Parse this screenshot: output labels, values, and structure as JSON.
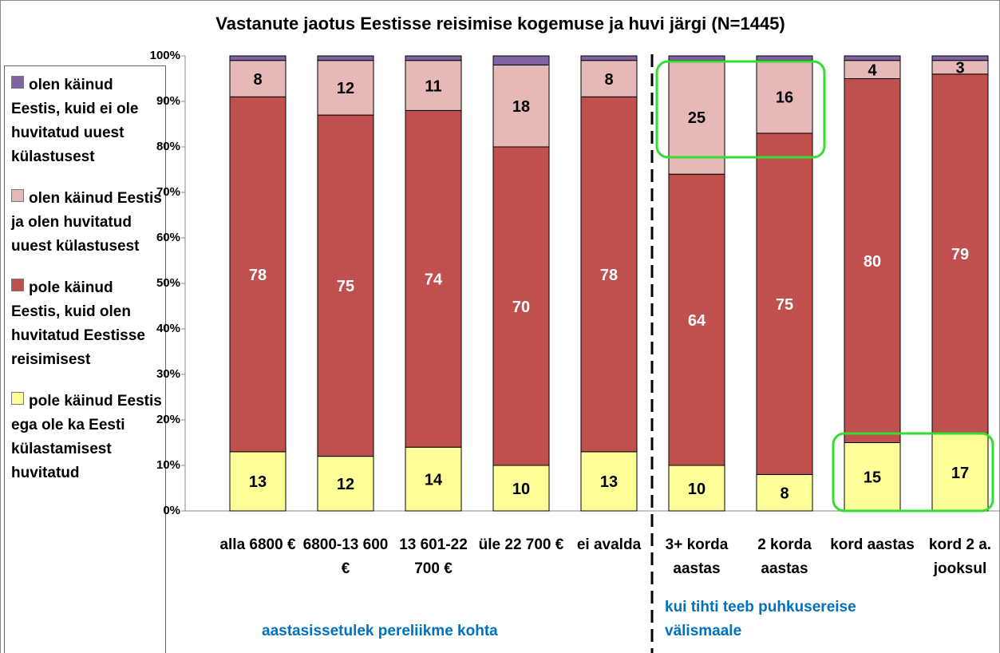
{
  "chart_data": {
    "type": "stacked_bar_100",
    "title": "Vastanute jaotus Eestisse reisimise kogemuse ja huvi järgi (N=1445)",
    "categories": [
      "alla 6800 €",
      "6800-13 600 €",
      "13 601-22 700 €",
      "üle 22 700 €",
      "ei avalda",
      "3+ korda aastas",
      "2 korda aastas",
      "kord aastas",
      "kord 2 a. jooksul"
    ],
    "series": [
      {
        "name": "olen käinud Eestis, kuid ei ole huvitatud uuest külastusest",
        "color": "#8064a2",
        "show_labels": false,
        "values": [
          1,
          1,
          1,
          2,
          1,
          1,
          1,
          1,
          1
        ]
      },
      {
        "name": "olen käinud Eestis ja olen huvitatud uuest külastusest",
        "color": "#e6b9b8",
        "show_labels": true,
        "label_color": "#000000",
        "values": [
          8,
          12,
          11,
          18,
          8,
          25,
          16,
          4,
          3
        ]
      },
      {
        "name": "pole käinud Eestis, kuid olen huvitatud Eestisse reisimisest",
        "color": "#c0504d",
        "show_labels": true,
        "label_color": "#ffffff",
        "values": [
          78,
          75,
          74,
          70,
          78,
          64,
          75,
          80,
          79
        ]
      },
      {
        "name": "pole käinud Eestis ega ole ka Eesti külastamisest huvitatud",
        "color": "#ffff99",
        "show_labels": true,
        "label_color": "#000000",
        "values": [
          13,
          12,
          14,
          10,
          13,
          10,
          8,
          15,
          17
        ]
      }
    ],
    "ylim": [
      0,
      100
    ],
    "yticks": [
      {
        "value": 0,
        "label": "0%"
      },
      {
        "value": 10,
        "label": "10%"
      },
      {
        "value": 20,
        "label": "20%"
      },
      {
        "value": 30,
        "label": "30%"
      },
      {
        "value": 40,
        "label": "40%"
      },
      {
        "value": 50,
        "label": "50%"
      },
      {
        "value": 60,
        "label": "60%"
      },
      {
        "value": 70,
        "label": "70%"
      },
      {
        "value": 80,
        "label": "80%"
      },
      {
        "value": 90,
        "label": "90%"
      },
      {
        "value": 100,
        "label": "100%"
      }
    ],
    "groups": [
      {
        "label": "aastasissetulek  pereliikme kohta",
        "color": "#0070c0"
      },
      {
        "label": "kui tihti teeb puhkusereise välismaale",
        "color": "#0070c0"
      }
    ],
    "legend": "left",
    "grid": false
  }
}
